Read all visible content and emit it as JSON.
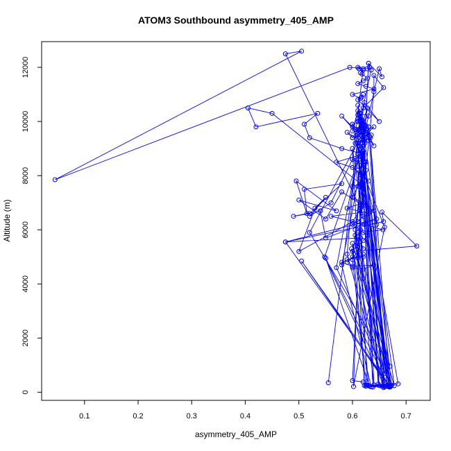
{
  "chart_data": {
    "type": "line",
    "title": "ATOM3 Southbound asymmetry_405_AMP",
    "xlabel": "asymmetry_405_AMP",
    "ylabel": "Altitude (m)",
    "xlim": [
      0.02,
      0.745
    ],
    "ylim": [
      -300,
      12950
    ],
    "x_ticks": [
      0.1,
      0.2,
      0.3,
      0.4,
      0.5,
      0.6,
      0.7
    ],
    "x_tick_labels": [
      "0.1",
      "0.2",
      "0.3",
      "0.4",
      "0.5",
      "0.6",
      "0.7"
    ],
    "y_ticks": [
      0,
      2000,
      4000,
      6000,
      8000,
      10000,
      12000
    ],
    "y_tick_labels": [
      "0",
      "2000",
      "4000",
      "6000",
      "8000",
      "10000",
      "12000"
    ],
    "grid": false,
    "series": [
      {
        "color": "#0000ff",
        "marker": "open-circle",
        "x": [
          0.555,
          0.61,
          0.62,
          0.66,
          0.63,
          0.58,
          0.635,
          0.648,
          0.62,
          0.6,
          0.625,
          0.665,
          0.61,
          0.59,
          0.658,
          0.64,
          0.62,
          0.605,
          0.67,
          0.638,
          0.615,
          0.57,
          0.672,
          0.61,
          0.627,
          0.632,
          0.55,
          0.668,
          0.6,
          0.622,
          0.685,
          0.61,
          0.66,
          0.548,
          0.62,
          0.673,
          0.598,
          0.658,
          0.612,
          0.67,
          0.505,
          0.665,
          0.623,
          0.678,
          0.6,
          0.625,
          0.67,
          0.62,
          0.65,
          0.615,
          0.475,
          0.67,
          0.633,
          0.66,
          0.605,
          0.63,
          0.655,
          0.62,
          0.52,
          0.67,
          0.605,
          0.64,
          0.615,
          0.668,
          0.62,
          0.66,
          0.602,
          0.62,
          0.645,
          0.6,
          0.63,
          0.628,
          0.64,
          0.61,
          0.635,
          0.618,
          0.6,
          0.625,
          0.618,
          0.61,
          0.62,
          0.58,
          0.615,
          0.63,
          0.62,
          0.6,
          0.59,
          0.623,
          0.615,
          0.612,
          0.62,
          0.618,
          0.625,
          0.61,
          0.6,
          0.625,
          0.615,
          0.632,
          0.62,
          0.61,
          0.62,
          0.61,
          0.62,
          0.628,
          0.615,
          0.622,
          0.65,
          0.61,
          0.617,
          0.62,
          0.615,
          0.6,
          0.64,
          0.625,
          0.61,
          0.62,
          0.628,
          0.618,
          0.615,
          0.62,
          0.612,
          0.61,
          0.62,
          0.6,
          0.56,
          0.52,
          0.55,
          0.53,
          0.5,
          0.6,
          0.62,
          0.58,
          0.55,
          0.5,
          0.57,
          0.495,
          0.515,
          0.51,
          0.58,
          0.52,
          0.49,
          0.54,
          0.55,
          0.645,
          0.475,
          0.658,
          0.655,
          0.72,
          0.6,
          0.62,
          0.59,
          0.6,
          0.62,
          0.64,
          0.6,
          0.58,
          0.62,
          0.61,
          0.612,
          0.59,
          0.6,
          0.62,
          0.61,
          0.657,
          0.622,
          0.56,
          0.64,
          0.63,
          0.615,
          0.45,
          0.405,
          0.42,
          0.535,
          0.51,
          0.52,
          0.58,
          0.62,
          0.57,
          0.6,
          0.62,
          0.63,
          0.61,
          0.6,
          0.62,
          0.59,
          0.63,
          0.62,
          0.61,
          0.6,
          0.615,
          0.62,
          0.628,
          0.62,
          0.61,
          0.64,
          0.64,
          0.658,
          0.62,
          0.613,
          0.63,
          0.62,
          0.6,
          0.61,
          0.615,
          0.6,
          0.64,
          0.61,
          0.615,
          0.62,
          0.613,
          0.6,
          0.62,
          0.625,
          0.62,
          0.615,
          0.615,
          0.6,
          0.65,
          0.655,
          0.63,
          0.635,
          0.605,
          0.625,
          0.62,
          0.615,
          0.475,
          0.505,
          0.045,
          0.595,
          0.627,
          0.632,
          0.63,
          0.6,
          0.62
        ],
        "y": [
          350,
          9200,
          4200,
          220,
          9800,
          4700,
          200,
          300,
          8700,
          4900,
          260,
          220,
          9500,
          5100,
          240,
          270,
          8900,
          5400,
          250,
          190,
          9300,
          4600,
          230,
          8200,
          260,
          220,
          4950,
          200,
          9000,
          250,
          310,
          8800,
          200,
          5000,
          9100,
          260,
          5300,
          170,
          8600,
          220,
          4850,
          260,
          8500,
          240,
          5500,
          220,
          200,
          8300,
          240,
          5700,
          5550,
          190,
          9400,
          700,
          5800,
          250,
          220,
          9600,
          5900,
          960,
          6000,
          270,
          9200,
          200,
          8100,
          6100,
          210,
          9700,
          6200,
          9900,
          9300,
          9600,
          9100,
          10000,
          9500,
          9700,
          9800,
          9400,
          9900,
          10100,
          9300,
          10200,
          9500,
          9800,
          10000,
          9400,
          9600,
          9200,
          10300,
          9700,
          9900,
          10050,
          9850,
          10400,
          9650,
          9550,
          10150,
          9450,
          9750,
          10250,
          9350,
          10600,
          9650,
          10500,
          9750,
          10700,
          10000,
          10800,
          10900,
          11000,
          10850,
          11000,
          11200,
          11300,
          11400,
          11500,
          11600,
          11750,
          11800,
          11900,
          11950,
          12000,
          11950,
          8600,
          7000,
          6500,
          7200,
          6800,
          5200,
          6300,
          6900,
          7400,
          6400,
          7100,
          6700,
          7800,
          6600,
          7500,
          7700,
          6600,
          6500,
          6700,
          5700,
          6400,
          5550,
          6300,
          6650,
          5400,
          5200,
          5000,
          4900,
          4600,
          4550,
          4700,
          4650,
          4800,
          5100,
          4950,
          5200,
          4800,
          5000,
          5300,
          5900,
          6000,
          6200,
          6500,
          6700,
          6800,
          7700,
          10300,
          10500,
          9800,
          10300,
          9900,
          9400,
          9000,
          8800,
          8500,
          8300,
          8000,
          7800,
          7600,
          7200,
          7000,
          6800,
          6600,
          6500,
          6300,
          6200,
          6000,
          5900,
          5800,
          5600,
          5400,
          11100,
          11700,
          11250,
          10500,
          10300,
          10200,
          10000,
          9900,
          9700,
          9500,
          9400,
          9800,
          9200,
          9000,
          8900,
          8700,
          8600,
          8400,
          8200,
          8000,
          7900,
          7700,
          7600,
          11950,
          11650,
          12150,
          11900,
          9200,
          8500,
          7500,
          6800,
          12500,
          12600,
          7850,
          12000,
          11950,
          12000,
          12150,
          430,
          380
        ]
      }
    ]
  }
}
